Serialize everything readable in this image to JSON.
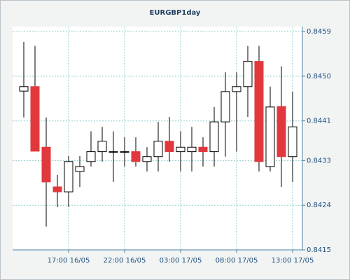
{
  "chart_data": {
    "type": "candlestick",
    "title": "EURGBP1day",
    "categories": [
      null,
      null,
      null,
      null,
      "17:00 16/05",
      null,
      null,
      null,
      null,
      "22:00 16/05",
      null,
      null,
      null,
      null,
      "03:00 17/05",
      null,
      null,
      null,
      null,
      "08:00 17/05",
      null,
      null,
      null,
      null,
      "13:00 17/05"
    ],
    "open": [
      0.8447,
      0.84479,
      0.84357,
      0.84277,
      0.84267,
      0.84308,
      0.84328,
      0.84348,
      0.84348,
      0.84348,
      0.84348,
      0.84328,
      0.84338,
      0.84369,
      0.84348,
      0.84348,
      0.84357,
      0.84348,
      0.84408,
      0.84469,
      0.84479,
      0.8453,
      0.84318,
      0.84439,
      0.84338
    ],
    "high": [
      0.84569,
      0.84561,
      0.84417,
      0.84301,
      0.84339,
      0.84339,
      0.84389,
      0.84398,
      0.84389,
      0.84377,
      0.84377,
      0.84357,
      0.84408,
      0.84418,
      0.84389,
      0.84398,
      0.84377,
      0.84438,
      0.84508,
      0.84508,
      0.84561,
      0.84561,
      0.84479,
      0.8452,
      0.84469
    ],
    "low": [
      0.84417,
      0.84349,
      0.84197,
      0.84236,
      0.84236,
      0.84277,
      0.84318,
      0.84328,
      0.84287,
      0.84318,
      0.84318,
      0.84308,
      0.84308,
      0.84328,
      0.84308,
      0.84308,
      0.84318,
      0.84318,
      0.84338,
      0.84348,
      0.84418,
      0.84308,
      0.84308,
      0.84277,
      0.84287
    ],
    "close": [
      0.84479,
      0.84349,
      0.84287,
      0.84267,
      0.84328,
      0.84318,
      0.84348,
      0.84369,
      0.84348,
      0.84348,
      0.84328,
      0.84338,
      0.84369,
      0.84348,
      0.84357,
      0.84357,
      0.84348,
      0.84408,
      0.84469,
      0.84479,
      0.8453,
      0.84328,
      0.84438,
      0.84338,
      0.84398
    ],
    "up_color": "#ffffff",
    "down_color": "#e0383c",
    "ylim": [
      0.8415,
      0.846
    ],
    "yticks": [
      0.8415,
      0.8424,
      0.8433,
      0.8441,
      {
        "value": 0.845,
        "label": "0.8450"
      },
      0.8459
    ],
    "grid": true
  }
}
